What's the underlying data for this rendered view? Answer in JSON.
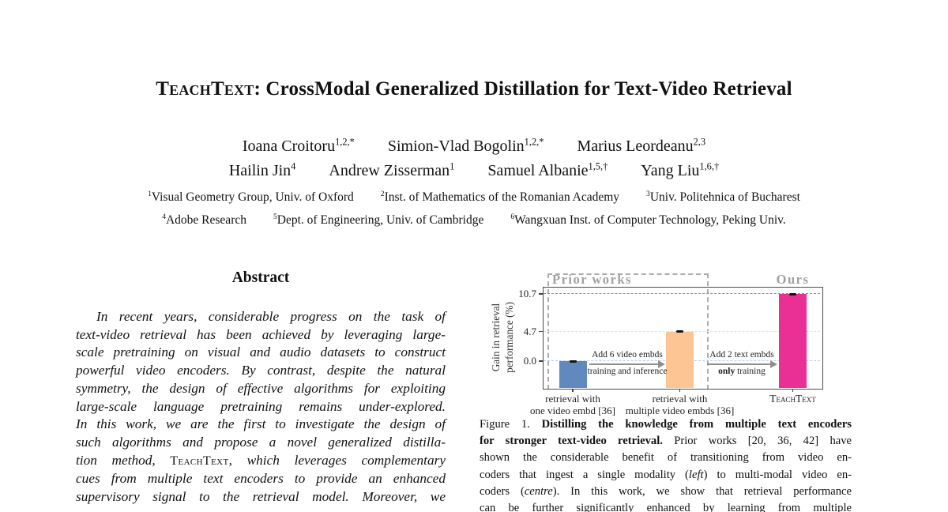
{
  "title": {
    "name": "TeachText",
    "rest": ": CrossModal Generalized Distillation for Text-Video Retrieval"
  },
  "authors": [
    [
      {
        "name": "Ioana Croitoru",
        "sup": "1,2,*"
      },
      {
        "name": "Simion-Vlad Bogolin",
        "sup": "1,2,*"
      },
      {
        "name": "Marius Leordeanu",
        "sup": "2,3"
      }
    ],
    [
      {
        "name": "Hailin Jin",
        "sup": "4"
      },
      {
        "name": "Andrew Zisserman",
        "sup": "1"
      },
      {
        "name": "Samuel Albanie",
        "sup": "1,5,†"
      },
      {
        "name": "Yang Liu",
        "sup": "1,6,†"
      }
    ]
  ],
  "affiliations": [
    [
      {
        "sup": "1",
        "text": "Visual Geometry Group, Univ. of Oxford"
      },
      {
        "sup": "2",
        "text": "Inst. of Mathematics of the Romanian Academy"
      },
      {
        "sup": "3",
        "text": "Univ. Politehnica of Bucharest"
      }
    ],
    [
      {
        "sup": "4",
        "text": "Adobe Research"
      },
      {
        "sup": "5",
        "text": "Dept. of Engineering, Univ. of Cambridge"
      },
      {
        "sup": "6",
        "text": "Wangxuan Inst. of Computer Technology, Peking Univ."
      }
    ]
  ],
  "abstract": {
    "heading": "Abstract",
    "lines": [
      [
        {
          "t": "In recent years, considerable progress on the task of"
        }
      ],
      [
        {
          "t": "text-video retrieval has been achieved by leveraging large-"
        }
      ],
      [
        {
          "t": "scale pretraining on visual and audio datasets to construct"
        }
      ],
      [
        {
          "t": "powerful video encoders. By contrast, despite the natural"
        }
      ],
      [
        {
          "t": "symmetry, the design of effective algorithms for exploiting"
        }
      ],
      [
        {
          "t": "large-scale language pretraining remains under-explored."
        }
      ],
      [
        {
          "t": "In this work, we are the first to investigate the design of"
        }
      ],
      [
        {
          "t": "such algorithms and propose a novel generalized distilla-"
        }
      ],
      [
        {
          "t": "tion method, "
        },
        {
          "t": "TeachText",
          "sc": true
        },
        {
          "t": ", which leverages complementary"
        }
      ],
      [
        {
          "t": "cues from multiple text encoders to provide an enhanced"
        }
      ],
      [
        {
          "t": "supervisory signal to the retrieval model. Moreover, we"
        }
      ]
    ]
  },
  "chart_data": {
    "type": "bar",
    "categories": [
      "retrieval with one video embd [36]",
      "retrieval with multiple video embds [36]",
      "TeachText"
    ],
    "values": [
      0.0,
      4.7,
      10.7
    ],
    "bar_colors": [
      "#6189bd",
      "#fcc593",
      "#eb3095"
    ],
    "ylabel": "Gain in retrieval performance (%)",
    "ylabel_lines": [
      "Gain in retrieval",
      "performance (%)"
    ],
    "ylim": [
      -4.3,
      11.9
    ],
    "grid": "dashed horizontal line at each ytick",
    "legend_position": "none",
    "yticks": [
      {
        "value": 10.7,
        "label": "10.7",
        "line_color": "#f2569f"
      },
      {
        "value": 4.7,
        "label": "4.7",
        "line_color": "#fbd8b3"
      },
      {
        "value": 0.0,
        "label": "0.0",
        "line_color": "#b9cde8"
      }
    ],
    "xticklabels": [
      {
        "lines": [
          "retrieval with",
          "one video embd [36]"
        ],
        "smallcaps": false
      },
      {
        "lines": [
          "retrieval with",
          "multiple video embds [36]"
        ],
        "smallcaps": false
      },
      {
        "lines": [
          "TeachText"
        ],
        "smallcaps": true
      }
    ],
    "annotations": {
      "prior_works_label": "Prior works",
      "ours_label": "Ours",
      "arrows": [
        {
          "top": "Add 6 video embds",
          "bottom": [
            {
              "t": "training and inference"
            }
          ]
        },
        {
          "top": "Add 2 text embds",
          "bottom": [
            {
              "t": "only",
              "b": true
            },
            {
              "t": " training"
            }
          ]
        }
      ]
    }
  },
  "caption": {
    "lines": [
      [
        {
          "t": "Figure 1. "
        },
        {
          "t": "Distilling the knowledge from multiple text encoders",
          "b": true
        }
      ],
      [
        {
          "t": "for stronger text-video retrieval.",
          "b": true
        },
        {
          "t": " Prior works [20, 36, 42] have"
        }
      ],
      [
        {
          "t": "shown the considerable benefit of transitioning from video en-"
        }
      ],
      [
        {
          "t": "coders that ingest a single modality ("
        },
        {
          "t": "left",
          "i": true
        },
        {
          "t": ") to multi-modal video en-"
        }
      ],
      [
        {
          "t": "coders ("
        },
        {
          "t": "centre",
          "i": true
        },
        {
          "t": "). In this work, we show that retrieval performance"
        }
      ],
      [
        {
          "t": "can be further significantly enhanced by learning from multiple"
        }
      ]
    ]
  }
}
